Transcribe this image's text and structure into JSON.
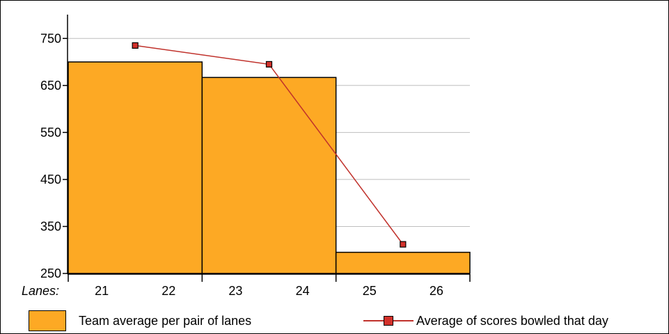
{
  "chart_data": {
    "type": "bar",
    "x_label": "Lanes:",
    "lane_ticks": [
      "21",
      "22",
      "23",
      "24",
      "25",
      "26"
    ],
    "categories": [
      "21-22",
      "23-24",
      "25-26"
    ],
    "series": [
      {
        "name": "Team average per pair of lanes",
        "kind": "bar",
        "values": [
          700,
          667,
          295
        ]
      },
      {
        "name": "Average of scores bowled that day",
        "kind": "line",
        "values": [
          735,
          695,
          312
        ]
      }
    ],
    "ylim": [
      250,
      780
    ],
    "yticks": [
      250,
      350,
      450,
      550,
      650,
      750
    ],
    "grid": true,
    "legend_position": "bottom",
    "colors": {
      "bar": "#FDA924",
      "line": "#C0312B",
      "marker": "#D3312B",
      "grid": "#BEBEBE"
    }
  }
}
